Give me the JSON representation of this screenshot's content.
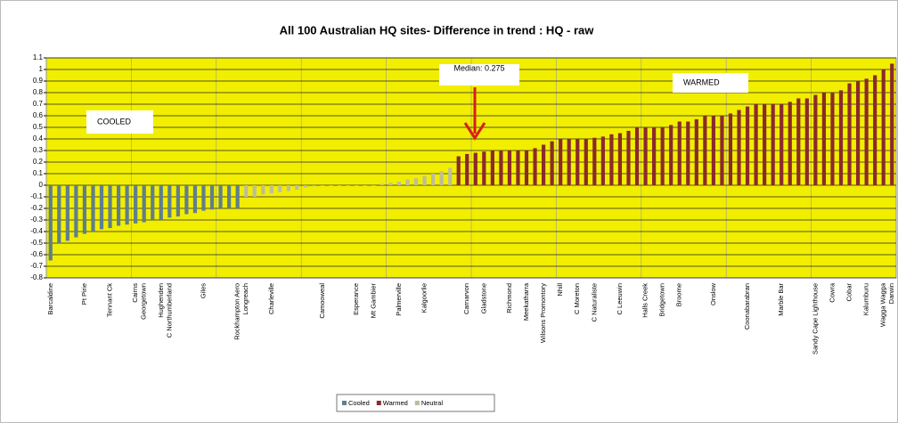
{
  "chart_data": {
    "type": "bar",
    "title": "All 100 Australian HQ sites- Difference in trend : HQ - raw",
    "annotations": [
      "Median: 0.275",
      "WARMED",
      "COOLED"
    ],
    "categories": [
      "Barcaldine",
      null,
      null,
      null,
      "Pt Pirie",
      null,
      null,
      "Tennant Ck",
      null,
      null,
      "Cairns",
      "Georgetown",
      null,
      "Hughenden",
      "C Northumberland",
      null,
      null,
      null,
      "Giles",
      null,
      null,
      null,
      "Rockhampton Aero",
      "Longreach",
      null,
      null,
      "Charleville",
      null,
      null,
      null,
      null,
      null,
      "Camooweal",
      null,
      null,
      null,
      "Esperance",
      null,
      "Mt Gambier",
      null,
      null,
      "Palmerville",
      null,
      null,
      "Kalgoorlie",
      null,
      null,
      null,
      null,
      "Carnarvon",
      null,
      "Gladstone",
      null,
      null,
      "Richmond",
      null,
      "Meekatharra",
      null,
      "Wilsons Promontory",
      null,
      "Nhill",
      null,
      "C Moreton",
      null,
      "C Naturaliste",
      null,
      null,
      "C Leeuwin",
      null,
      null,
      "Halls Creek",
      null,
      "Bridgetown",
      null,
      "Broome",
      null,
      null,
      null,
      "Onslow",
      null,
      null,
      null,
      "Coonabarabran",
      null,
      null,
      null,
      "Marble Bar",
      null,
      null,
      null,
      "Sandy Cape Lighthouse",
      null,
      "Cowra",
      null,
      "Cobar",
      null,
      "Kalumburu",
      null,
      "Wagga Wagga",
      "Darwin"
    ],
    "series": [
      {
        "name": "Cooled",
        "color": "#5f7f8c",
        "values": [
          -0.65,
          -0.5,
          -0.48,
          -0.45,
          -0.42,
          -0.4,
          -0.38,
          -0.37,
          -0.35,
          -0.34,
          -0.33,
          -0.32,
          -0.3,
          -0.3,
          -0.28,
          -0.27,
          -0.25,
          -0.24,
          -0.22,
          -0.21,
          -0.2,
          -0.2,
          -0.2,
          null,
          null,
          null,
          null,
          null,
          null,
          null,
          null,
          null,
          null,
          null,
          null,
          null,
          null,
          null,
          null,
          null,
          null,
          null,
          null,
          null,
          null,
          null,
          null,
          null,
          null,
          null,
          null,
          null,
          null,
          null,
          null,
          null,
          null,
          null,
          null,
          null,
          null,
          null,
          null,
          null,
          null,
          null,
          null,
          null,
          null,
          null,
          null,
          null,
          null,
          null,
          null,
          null,
          null,
          null,
          null,
          null,
          null,
          null,
          null,
          null,
          null,
          null,
          null,
          null,
          null,
          null,
          null,
          null,
          null,
          null,
          null,
          null,
          null,
          null,
          null,
          null
        ]
      },
      {
        "name": "Warmed",
        "color": "#8b2a2a",
        "values": [
          null,
          null,
          null,
          null,
          null,
          null,
          null,
          null,
          null,
          null,
          null,
          null,
          null,
          null,
          null,
          null,
          null,
          null,
          null,
          null,
          null,
          null,
          null,
          null,
          null,
          null,
          null,
          null,
          null,
          null,
          null,
          null,
          null,
          null,
          null,
          null,
          null,
          null,
          null,
          null,
          null,
          null,
          null,
          null,
          null,
          null,
          null,
          null,
          0.25,
          0.27,
          0.28,
          0.29,
          0.3,
          0.3,
          0.3,
          0.3,
          0.3,
          0.32,
          0.35,
          0.38,
          0.4,
          0.4,
          0.4,
          0.4,
          0.41,
          0.42,
          0.44,
          0.45,
          0.47,
          0.5,
          0.5,
          0.5,
          0.5,
          0.52,
          0.55,
          0.55,
          0.57,
          0.6,
          0.6,
          0.6,
          0.62,
          0.65,
          0.68,
          0.7,
          0.7,
          0.7,
          0.7,
          0.72,
          0.75,
          0.75,
          0.78,
          0.8,
          0.8,
          0.82,
          0.88,
          0.9,
          0.92,
          0.95,
          1.0,
          1.05
        ]
      },
      {
        "name": "Neutral",
        "color": "#bdbd9a",
        "values": [
          null,
          null,
          null,
          null,
          null,
          null,
          null,
          null,
          null,
          null,
          null,
          null,
          null,
          null,
          null,
          null,
          null,
          null,
          null,
          null,
          null,
          null,
          null,
          -0.1,
          -0.1,
          -0.08,
          -0.07,
          -0.06,
          -0.05,
          -0.04,
          -0.02,
          -0.01,
          0,
          0,
          0,
          0,
          0,
          0,
          0,
          0.01,
          0.02,
          0.03,
          0.05,
          0.06,
          0.08,
          0.1,
          0.12,
          0.15,
          null,
          null,
          null,
          null,
          null,
          null,
          null,
          null,
          null,
          null,
          null,
          null,
          null,
          null,
          null,
          null,
          null,
          null,
          null,
          null,
          null,
          null,
          null,
          null,
          null,
          null,
          null,
          null,
          null,
          null,
          null,
          null,
          null,
          null,
          null,
          null,
          null,
          null,
          null,
          null,
          null,
          null,
          null,
          null,
          null,
          null,
          null,
          null,
          null,
          null,
          null,
          null
        ]
      }
    ],
    "ylim": [
      -0.8,
      1.1
    ],
    "yticks": [
      -0.8,
      -0.7,
      -0.6,
      -0.5,
      -0.4,
      -0.3,
      -0.2,
      -0.1,
      0,
      0.1,
      0.2,
      0.3,
      0.4,
      0.5,
      0.6,
      0.7,
      0.8,
      0.9,
      1,
      1.1
    ],
    "grid": true,
    "plot_background": "#f2ee00",
    "legend": "bottom"
  }
}
